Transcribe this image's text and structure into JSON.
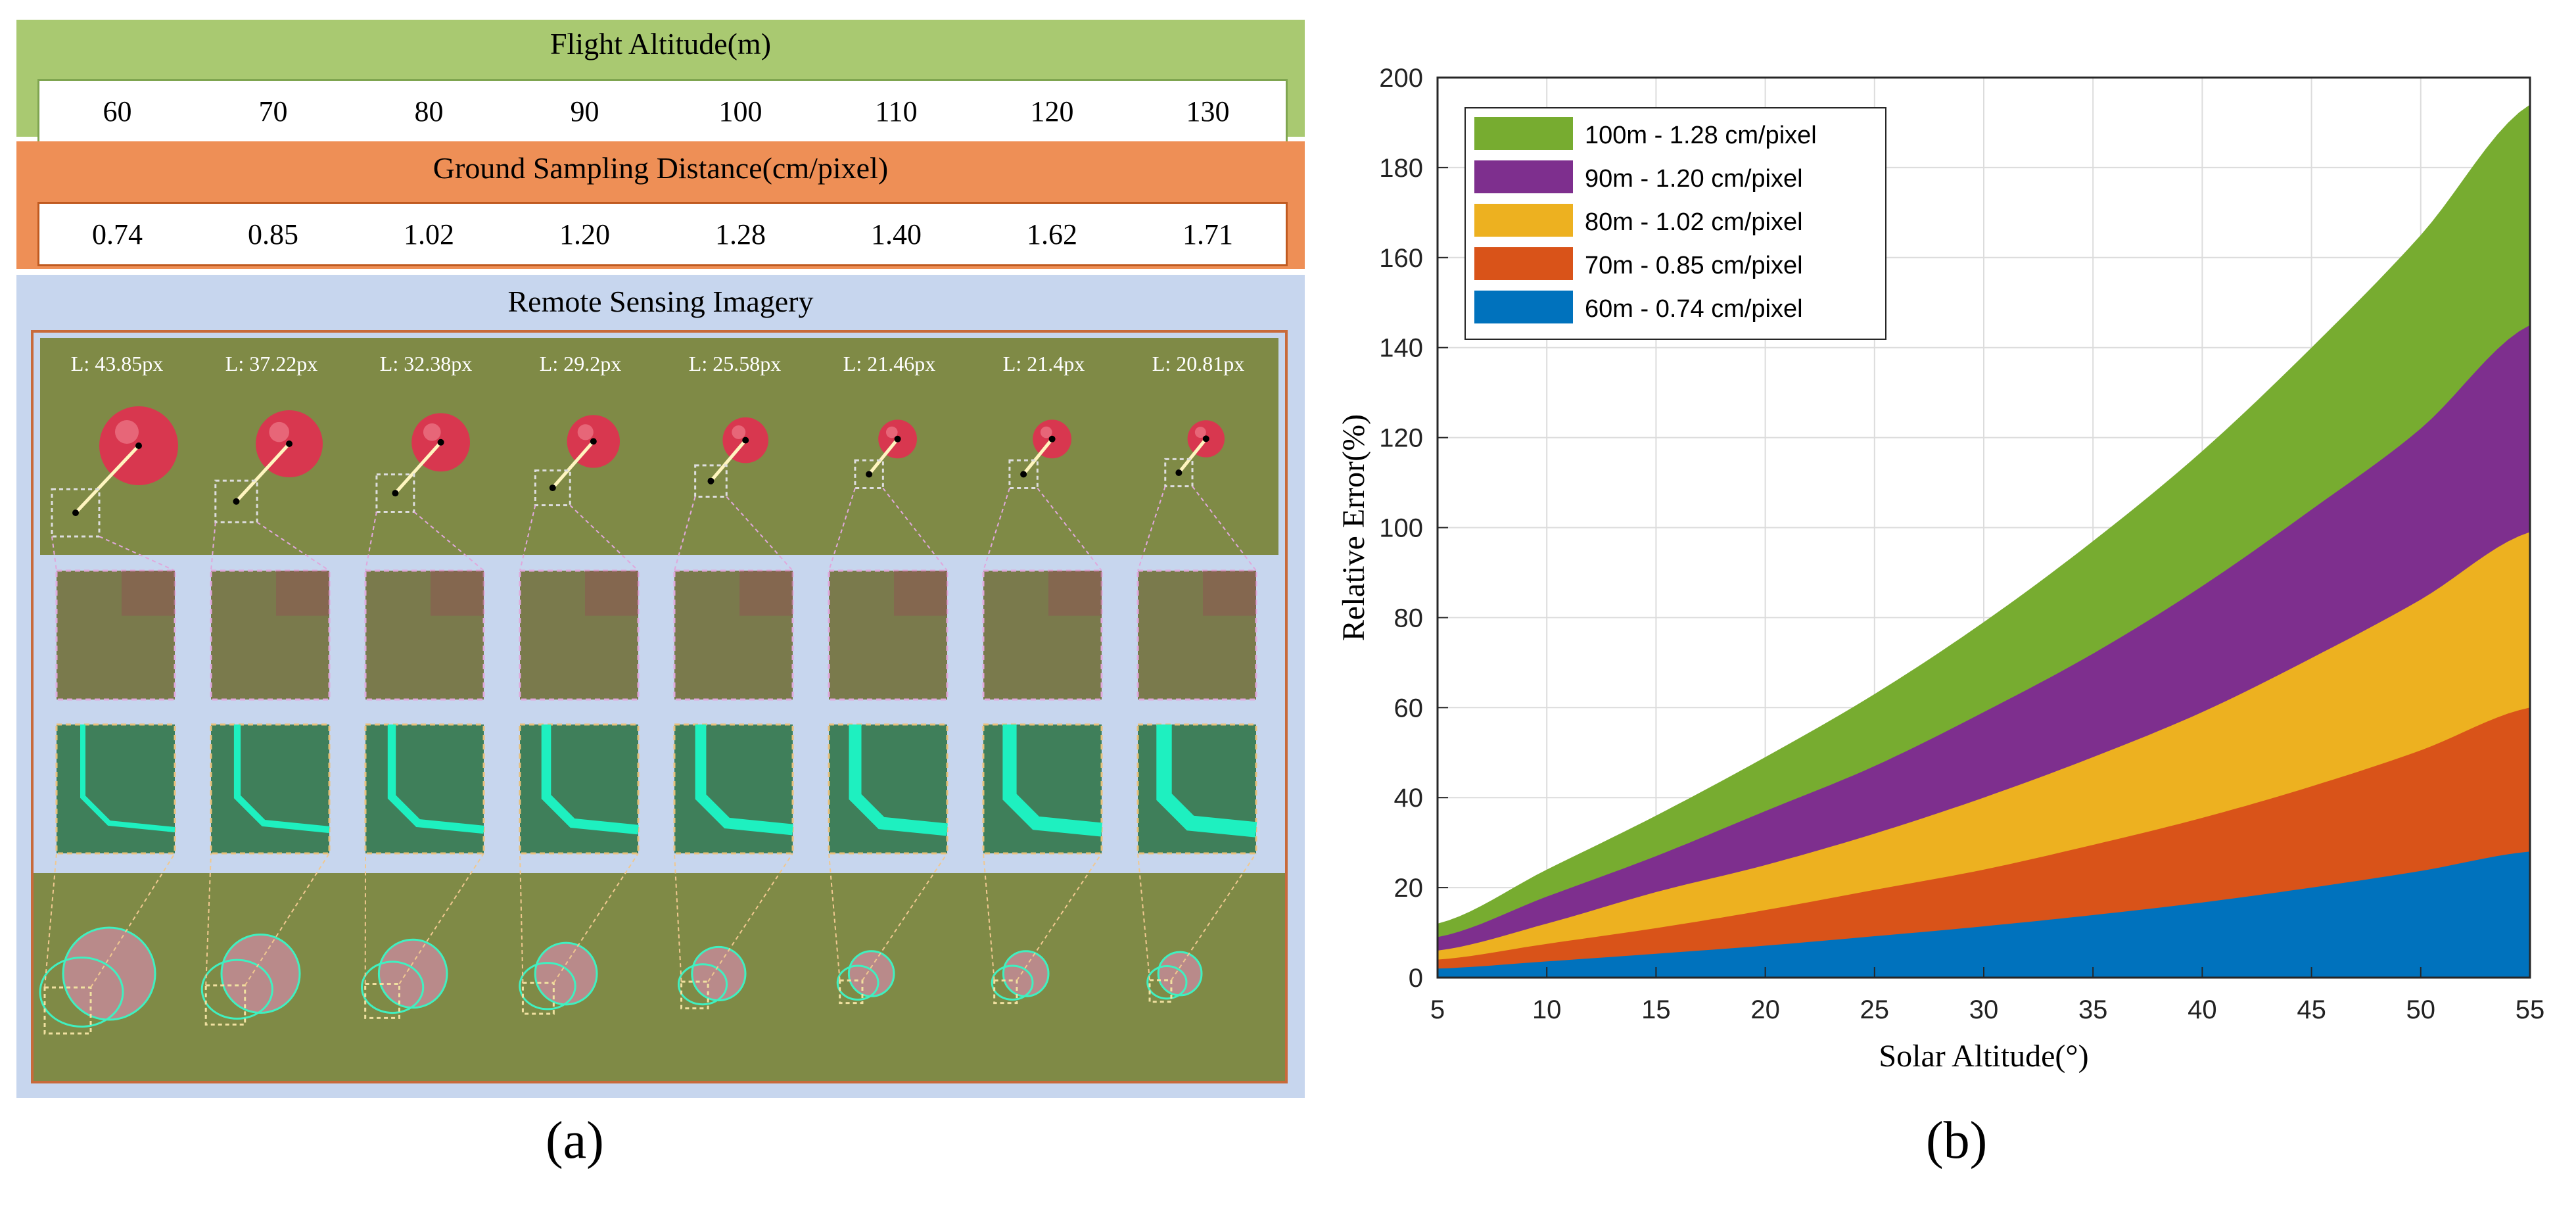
{
  "panel_a": {
    "altitude_title": "Flight Altitude(m)",
    "altitudes": [
      "60",
      "70",
      "80",
      "90",
      "100",
      "110",
      "120",
      "130"
    ],
    "gsd_title": "Ground Sampling Distance(cm/pixel)",
    "gsd_values": [
      "0.74",
      "0.85",
      "1.02",
      "1.20",
      "1.28",
      "1.40",
      "1.62",
      "1.71"
    ],
    "imagery_title": "Remote Sensing Imagery",
    "lengths": [
      "L: 43.85px",
      "L: 37.22px",
      "L: 32.38px",
      "L: 29.2px",
      "L: 25.58px",
      "L: 21.46px",
      "L: 21.4px",
      "L: 20.81px"
    ],
    "ball_scale": [
      1.0,
      0.85,
      0.74,
      0.67,
      0.58,
      0.49,
      0.49,
      0.47
    ],
    "label": "(a)"
  },
  "chart_data": {
    "type": "area",
    "stacked": false,
    "xlabel": "Solar Altitude(°)",
    "ylabel": "Relative Error(%)",
    "xlim": [
      5,
      55
    ],
    "ylim": [
      0,
      200
    ],
    "xticks": [
      5,
      10,
      15,
      20,
      25,
      30,
      35,
      40,
      45,
      50,
      55
    ],
    "yticks": [
      0,
      20,
      40,
      60,
      80,
      100,
      120,
      140,
      160,
      180,
      200
    ],
    "grid": true,
    "legend_position": "top-left",
    "x": [
      5,
      10,
      15,
      20,
      25,
      30,
      35,
      40,
      45,
      50,
      55
    ],
    "series": [
      {
        "name": "100m - 1.28 cm/pixel",
        "color": "#77ac30",
        "values": [
          12,
          24,
          36,
          49,
          63,
          79,
          97,
          117,
          140,
          165,
          194
        ]
      },
      {
        "name": "90m - 1.20 cm/pixel",
        "color": "#7e2f8e",
        "values": [
          9,
          18,
          27,
          37,
          47,
          59,
          72,
          87,
          104,
          122,
          145
        ]
      },
      {
        "name": "80m - 1.02 cm/pixel",
        "color": "#edb120",
        "values": [
          6,
          12,
          19,
          25,
          32,
          40,
          49,
          59,
          71,
          84,
          99
        ]
      },
      {
        "name": "70m - 0.85 cm/pixel",
        "color": "#d95319",
        "values": [
          4,
          7.5,
          11,
          15,
          19.5,
          24,
          29.5,
          35.5,
          42.5,
          50.5,
          60
        ]
      },
      {
        "name": "60m - 0.74 cm/pixel",
        "color": "#0072bd",
        "values": [
          2,
          3.6,
          5.3,
          7.1,
          9.2,
          11.4,
          13.9,
          16.7,
          20,
          23.7,
          28
        ]
      }
    ],
    "label": "(b)"
  }
}
